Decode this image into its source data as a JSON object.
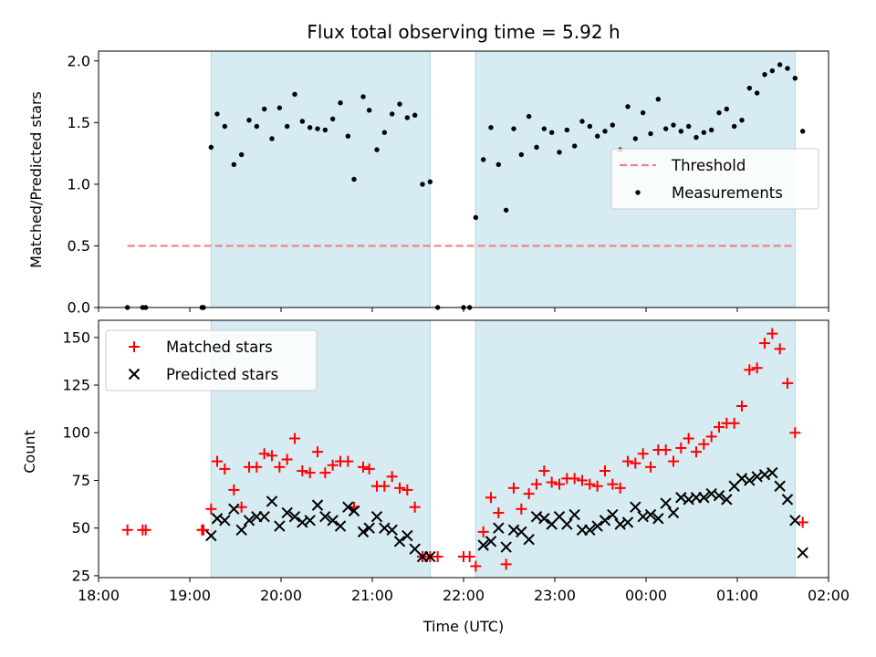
{
  "chart_data": [
    {
      "type": "scatter",
      "title": "Flux total observing time = 5.92 h",
      "xlabel": "",
      "ylabel": "Matched/Predicted stars",
      "xlim": [
        "18:00",
        "02:00"
      ],
      "ylim": [
        0,
        2.08
      ],
      "yticks": [
        0,
        0.5,
        1.0,
        1.5,
        2.0
      ],
      "ytick_labels": [
        "0.0",
        "0.5",
        "1.0",
        "1.5",
        "2.0"
      ],
      "shaded_spans": [
        [
          "19:14",
          "21:38"
        ],
        [
          "22:08",
          "01:38"
        ]
      ],
      "legend_position": "center-right",
      "legend": [
        {
          "label": "Threshold",
          "color": "#f08080",
          "style": "dashed"
        },
        {
          "label": "Measurements",
          "color": "#000000",
          "style": "dot"
        }
      ],
      "threshold": {
        "name": "Threshold",
        "y": 0.5,
        "x_start": "18:19",
        "x_end": "01:38"
      },
      "series": [
        {
          "name": "Measurements",
          "color": "#000000",
          "points": [
            [
              "18:19",
              0
            ],
            [
              "18:29",
              0
            ],
            [
              "18:31",
              0
            ],
            [
              "19:08",
              0
            ],
            [
              "19:09",
              0
            ],
            [
              "19:14",
              1.3
            ],
            [
              "19:18",
              1.57
            ],
            [
              "19:23",
              1.47
            ],
            [
              "19:29",
              1.16
            ],
            [
              "19:34",
              1.24
            ],
            [
              "19:39",
              1.52
            ],
            [
              "19:44",
              1.47
            ],
            [
              "19:49",
              1.61
            ],
            [
              "19:54",
              1.37
            ],
            [
              "19:59",
              1.62
            ],
            [
              "20:04",
              1.47
            ],
            [
              "20:09",
              1.73
            ],
            [
              "20:14",
              1.51
            ],
            [
              "20:19",
              1.46
            ],
            [
              "20:24",
              1.45
            ],
            [
              "20:29",
              1.44
            ],
            [
              "20:34",
              1.53
            ],
            [
              "20:39",
              1.66
            ],
            [
              "20:44",
              1.39
            ],
            [
              "20:48",
              1.04
            ],
            [
              "20:54",
              1.71
            ],
            [
              "20:58",
              1.6
            ],
            [
              "21:03",
              1.28
            ],
            [
              "21:08",
              1.42
            ],
            [
              "21:13",
              1.57
            ],
            [
              "21:18",
              1.65
            ],
            [
              "21:23",
              1.54
            ],
            [
              "21:28",
              1.56
            ],
            [
              "21:33",
              1.0
            ],
            [
              "21:38",
              1.02
            ],
            [
              "21:43",
              0
            ],
            [
              "22:00",
              0
            ],
            [
              "22:04",
              0
            ],
            [
              "22:08",
              0.73
            ],
            [
              "22:13",
              1.2
            ],
            [
              "22:18",
              1.46
            ],
            [
              "22:23",
              1.16
            ],
            [
              "22:28",
              0.79
            ],
            [
              "22:33",
              1.45
            ],
            [
              "22:38",
              1.24
            ],
            [
              "22:43",
              1.55
            ],
            [
              "22:48",
              1.3
            ],
            [
              "22:53",
              1.45
            ],
            [
              "22:58",
              1.42
            ],
            [
              "23:03",
              1.26
            ],
            [
              "23:08",
              1.44
            ],
            [
              "23:13",
              1.31
            ],
            [
              "23:18",
              1.51
            ],
            [
              "23:23",
              1.47
            ],
            [
              "23:28",
              1.39
            ],
            [
              "23:33",
              1.43
            ],
            [
              "23:38",
              1.48
            ],
            [
              "23:43",
              1.28
            ],
            [
              "23:48",
              1.63
            ],
            [
              "23:53",
              1.37
            ],
            [
              "23:58",
              1.58
            ],
            [
              "00:03",
              1.41
            ],
            [
              "00:08",
              1.69
            ],
            [
              "00:13",
              1.45
            ],
            [
              "00:18",
              1.48
            ],
            [
              "00:23",
              1.43
            ],
            [
              "00:28",
              1.47
            ],
            [
              "00:33",
              1.38
            ],
            [
              "00:38",
              1.42
            ],
            [
              "00:43",
              1.44
            ],
            [
              "00:48",
              1.58
            ],
            [
              "00:53",
              1.61
            ],
            [
              "00:58",
              1.47
            ],
            [
              "01:03",
              1.52
            ],
            [
              "01:08",
              1.78
            ],
            [
              "01:13",
              1.74
            ],
            [
              "01:18",
              1.89
            ],
            [
              "01:23",
              1.92
            ],
            [
              "01:28",
              1.97
            ],
            [
              "01:33",
              1.94
            ],
            [
              "01:38",
              1.86
            ],
            [
              "01:43",
              1.43
            ]
          ]
        }
      ]
    },
    {
      "type": "scatter",
      "title": "",
      "xlabel": "Time (UTC)",
      "ylabel": "Count",
      "xlim": [
        "18:00",
        "02:00"
      ],
      "xticks": [
        "18:00",
        "19:00",
        "20:00",
        "21:00",
        "22:00",
        "23:00",
        "00:00",
        "01:00",
        "02:00"
      ],
      "ylim": [
        24,
        159
      ],
      "yticks": [
        25,
        50,
        75,
        100,
        125,
        150
      ],
      "ytick_labels": [
        "25",
        "50",
        "75",
        "100",
        "125",
        "150"
      ],
      "shaded_spans": [
        [
          "19:14",
          "21:38"
        ],
        [
          "22:08",
          "01:38"
        ]
      ],
      "legend_position": "upper-left",
      "legend": [
        {
          "label": "Matched stars",
          "color": "#ff0000",
          "marker": "plus"
        },
        {
          "label": "Predicted stars",
          "color": "#000000",
          "marker": "x"
        }
      ],
      "series": [
        {
          "name": "Matched stars",
          "color": "#ff0000",
          "marker": "plus",
          "points": [
            [
              "18:19",
              49
            ],
            [
              "18:29",
              49
            ],
            [
              "18:31",
              49
            ],
            [
              "19:08",
              49
            ],
            [
              "19:09",
              49
            ],
            [
              "19:14",
              60
            ],
            [
              "19:18",
              85
            ],
            [
              "19:23",
              81
            ],
            [
              "19:29",
              70
            ],
            [
              "19:34",
              61
            ],
            [
              "19:39",
              82
            ],
            [
              "19:44",
              82
            ],
            [
              "19:49",
              89
            ],
            [
              "19:54",
              88
            ],
            [
              "19:59",
              82
            ],
            [
              "20:04",
              86
            ],
            [
              "20:09",
              97
            ],
            [
              "20:14",
              80
            ],
            [
              "20:19",
              79
            ],
            [
              "20:24",
              90
            ],
            [
              "20:29",
              79
            ],
            [
              "20:34",
              83
            ],
            [
              "20:39",
              85
            ],
            [
              "20:44",
              85
            ],
            [
              "20:48",
              61
            ],
            [
              "20:54",
              82
            ],
            [
              "20:58",
              81
            ],
            [
              "21:03",
              72
            ],
            [
              "21:08",
              72
            ],
            [
              "21:13",
              77
            ],
            [
              "21:18",
              71
            ],
            [
              "21:23",
              70
            ],
            [
              "21:28",
              61
            ],
            [
              "21:33",
              35
            ],
            [
              "21:38",
              35
            ],
            [
              "21:43",
              35
            ],
            [
              "22:00",
              35
            ],
            [
              "22:04",
              35
            ],
            [
              "22:08",
              30
            ],
            [
              "22:13",
              48
            ],
            [
              "22:18",
              66
            ],
            [
              "22:23",
              58
            ],
            [
              "22:28",
              31
            ],
            [
              "22:33",
              71
            ],
            [
              "22:38",
              60
            ],
            [
              "22:43",
              68
            ],
            [
              "22:48",
              73
            ],
            [
              "22:53",
              80
            ],
            [
              "22:58",
              74
            ],
            [
              "23:03",
              73
            ],
            [
              "23:08",
              76
            ],
            [
              "23:13",
              76
            ],
            [
              "23:18",
              75
            ],
            [
              "23:23",
              73
            ],
            [
              "23:28",
              72
            ],
            [
              "23:33",
              80
            ],
            [
              "23:38",
              73
            ],
            [
              "23:43",
              71
            ],
            [
              "23:48",
              85
            ],
            [
              "23:53",
              84
            ],
            [
              "23:58",
              89
            ],
            [
              "00:03",
              82
            ],
            [
              "00:08",
              91
            ],
            [
              "00:13",
              91
            ],
            [
              "00:18",
              85
            ],
            [
              "00:23",
              92
            ],
            [
              "00:28",
              97
            ],
            [
              "00:33",
              90
            ],
            [
              "00:38",
              94
            ],
            [
              "00:43",
              98
            ],
            [
              "00:48",
              103
            ],
            [
              "00:53",
              105
            ],
            [
              "00:58",
              105
            ],
            [
              "01:03",
              114
            ],
            [
              "01:08",
              133
            ],
            [
              "01:13",
              134
            ],
            [
              "01:18",
              147
            ],
            [
              "01:23",
              152
            ],
            [
              "01:28",
              144
            ],
            [
              "01:33",
              126
            ],
            [
              "01:38",
              100
            ],
            [
              "01:43",
              53
            ]
          ]
        },
        {
          "name": "Predicted stars",
          "color": "#000000",
          "marker": "x",
          "points": [
            [
              "19:14",
              46
            ],
            [
              "19:18",
              55
            ],
            [
              "19:23",
              54
            ],
            [
              "19:29",
              60
            ],
            [
              "19:34",
              49
            ],
            [
              "19:39",
              54
            ],
            [
              "19:44",
              56
            ],
            [
              "19:49",
              56
            ],
            [
              "19:54",
              64
            ],
            [
              "19:59",
              51
            ],
            [
              "20:04",
              58
            ],
            [
              "20:09",
              56
            ],
            [
              "20:14",
              53
            ],
            [
              "20:19",
              54
            ],
            [
              "20:24",
              62
            ],
            [
              "20:29",
              56
            ],
            [
              "20:34",
              54
            ],
            [
              "20:39",
              51
            ],
            [
              "20:44",
              61
            ],
            [
              "20:48",
              59
            ],
            [
              "20:54",
              48
            ],
            [
              "20:58",
              50
            ],
            [
              "21:03",
              56
            ],
            [
              "21:08",
              50
            ],
            [
              "21:13",
              49
            ],
            [
              "21:18",
              43
            ],
            [
              "21:23",
              46
            ],
            [
              "21:28",
              39
            ],
            [
              "21:33",
              35
            ],
            [
              "21:38",
              35
            ],
            [
              "22:13",
              41
            ],
            [
              "22:18",
              43
            ],
            [
              "22:23",
              50
            ],
            [
              "22:28",
              40
            ],
            [
              "22:33",
              49
            ],
            [
              "22:38",
              48
            ],
            [
              "22:43",
              44
            ],
            [
              "22:48",
              56
            ],
            [
              "22:53",
              55
            ],
            [
              "22:58",
              52
            ],
            [
              "23:03",
              56
            ],
            [
              "23:08",
              52
            ],
            [
              "23:13",
              57
            ],
            [
              "23:18",
              49
            ],
            [
              "23:23",
              49
            ],
            [
              "23:28",
              51
            ],
            [
              "23:33",
              54
            ],
            [
              "23:38",
              57
            ],
            [
              "23:43",
              52
            ],
            [
              "23:48",
              53
            ],
            [
              "23:53",
              61
            ],
            [
              "23:58",
              56
            ],
            [
              "00:03",
              57
            ],
            [
              "00:08",
              55
            ],
            [
              "00:13",
              63
            ],
            [
              "00:18",
              58
            ],
            [
              "00:23",
              66
            ],
            [
              "00:28",
              65
            ],
            [
              "00:33",
              66
            ],
            [
              "00:38",
              66
            ],
            [
              "00:43",
              68
            ],
            [
              "00:48",
              67
            ],
            [
              "00:53",
              65
            ],
            [
              "00:58",
              72
            ],
            [
              "01:03",
              76
            ],
            [
              "01:08",
              75
            ],
            [
              "01:13",
              77
            ],
            [
              "01:18",
              78
            ],
            [
              "01:23",
              79
            ],
            [
              "01:28",
              72
            ],
            [
              "01:33",
              65
            ],
            [
              "01:38",
              54
            ],
            [
              "01:43",
              37
            ]
          ]
        }
      ]
    }
  ]
}
